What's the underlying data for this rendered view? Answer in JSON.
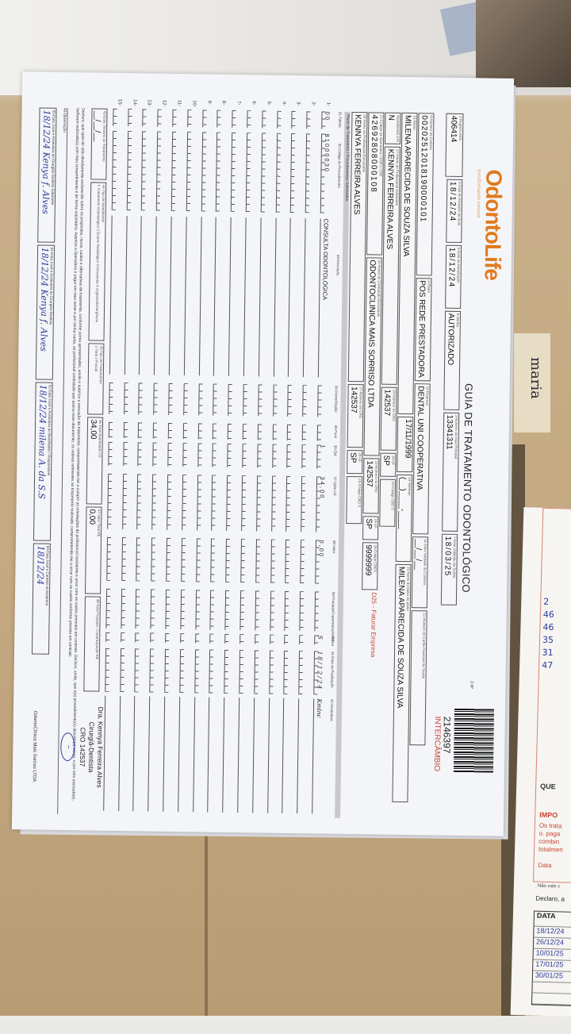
{
  "background": {
    "note_label": "maria"
  },
  "header": {
    "logo": "OdontoLife",
    "logo_tagline": "transformando sorrisos",
    "title": "GUIA DE TRATAMENTO ODONTOLÓGICO",
    "guide_number": "2146397",
    "guide_type": "INTERCÂMBIO",
    "page": "2-Nº"
  },
  "fields": {
    "registro_ans": {
      "label": "1-Registro ANS",
      "value": "406414"
    },
    "data_emissao": {
      "label": "4-Data de Emissão da Guia",
      "value": "18/12/24"
    },
    "data_autorizacao": {
      "label": "5-Data da Autorização",
      "value": "18/12/24"
    },
    "senha": {
      "label": "6-Senha",
      "value": "AUTORIZADO"
    },
    "guia_principal": {
      "label": "3-Número da Guia Principal",
      "value": "13341311"
    },
    "validade_senha": {
      "label": "7-Data Validade da Senha",
      "value": "18/03/25"
    },
    "carteira": {
      "label": "8-Número da Carteira",
      "value": "00202512018190000101"
    },
    "plano": {
      "label": "9-Plano",
      "value": "POS REDE PRESTADORA"
    },
    "empresa": {
      "label": "10-Empresa",
      "value": "DENTAL UNI COOPERATIVA"
    },
    "validade_carteira": {
      "label": "11-Data Validade da Carteira",
      "value": "__/__/__"
    },
    "cns": {
      "label": "12-Número do Cartão Nacional de Saúde",
      "value": ""
    },
    "nome": {
      "label": "13-Nome",
      "value": "MILENA APARECIDA DE SOUZA SILVA"
    },
    "nascimento": {
      "label": "",
      "value": "17/11/1999"
    },
    "telefone": {
      "label": "14-Telefone",
      "value": "(__)____-____"
    },
    "titular": {
      "label": "15-Nome do titular do plano",
      "value": "MILENA APARECIDA DE SOUZA SILVA"
    },
    "rn": {
      "label": "Atendimento a RN",
      "value": "N"
    },
    "prof_solicitante": {
      "label": "17-Nome do Profissional Solicitante",
      "value": "KENNYA FERREIRA ALVES"
    },
    "cro_sol": {
      "label": "18-Número no CRO",
      "value": "142537"
    },
    "uf_sol": {
      "label": "19-UF",
      "value": "SP"
    },
    "cbo_sol": {
      "label": "20-Código CBO S",
      "value": ""
    },
    "cod_operadora": {
      "label": "21-Código na Operadora / CNPJ / CPF",
      "value": "42692808000108"
    },
    "contratado": {
      "label": "22-Nome do Contratado Executante",
      "value": "ODONTOCLINICA MAIS SORRISO LTDA"
    },
    "cro_cont": {
      "label": "23-Número no CRO",
      "value": "142537"
    },
    "uf_cont": {
      "label": "24-UF",
      "value": "SP"
    },
    "cnes": {
      "label": "25-Código CNES",
      "value": "9999999"
    },
    "faturar": "D25 - Faturar Empresa",
    "prof_executante": {
      "label": "26-Nome do Profissional Executante",
      "value": "KENNYA FERREIRA ALVES"
    },
    "cro_exec": {
      "label": "27-Número no CRO",
      "value": "142537"
    },
    "uf_exec": {
      "label": "28-UF",
      "value": "SP"
    },
    "cbo_exec": {
      "label": "29-Código CBO S",
      "value": ""
    }
  },
  "plan_section": "Plano de Tratamento / Procedimentos Solicitados",
  "table_headers": [
    "31-Tabela",
    "32-Código do Procedimento",
    "33-Descrição",
    "34-Dente/Região",
    "35-Face",
    "36-Qtd",
    "37-Qtde US",
    "38-Valor",
    "39-Franquia/Coparticipação R$",
    "40-Aut",
    "41-Data de Realização",
    "42-Assinatura"
  ],
  "procedures": [
    {
      "num": "1-",
      "tabela": "00",
      "codigo": "81000030",
      "descricao": "CONSULTA ODONTOLÓGICA",
      "dente": "",
      "face": "",
      "qtd": "1",
      "qtde_us": "34,00",
      "valor": "0,00",
      "franquia": "",
      "aut": "S",
      "data": "18/12/24",
      "assinatura": "Kmlnc"
    },
    {
      "num": "2-"
    },
    {
      "num": "3-"
    },
    {
      "num": "4-"
    },
    {
      "num": "5-"
    },
    {
      "num": "6-"
    },
    {
      "num": "7-"
    },
    {
      "num": "8-"
    },
    {
      "num": "9-"
    },
    {
      "num": "10-"
    },
    {
      "num": "11-"
    },
    {
      "num": "12-"
    },
    {
      "num": "13-"
    },
    {
      "num": "14-"
    },
    {
      "num": "15-"
    }
  ],
  "totals": {
    "data_termino": {
      "label": "43-Data Término do Tratamento",
      "value": "__/__/__"
    },
    "tipo_atendimento": {
      "label": "44-Tipo de Atendimento",
      "value": "1-Tratamento Odontológico 2-Exame Radiológico 3-Ortodontia 4-Urgência/Emergência"
    },
    "tipo_faturamento": {
      "label": "45-Tipo de Faturamento",
      "value": "1-Total 2-Parcial"
    },
    "total_us": {
      "label": "46-Total Quantidade US",
      "value": "34,00"
    },
    "valor_total": {
      "label": "47-Valor Total R$",
      "value": "0,00"
    },
    "total_franquia": {
      "label": "48-Total Franquia / Coparticipação R$",
      "value": ""
    }
  },
  "declaration": "Declaro, que após ter sido devidamente esclarecido sobre os propósitos, riscos, custos e alternativas de tratamento, conforme acima apresentados, aceito e autorizo a execução do tratamento, comprometendo-me a cumprir as orientações do profissional assistente e arcar com os custos previstos em contrato. Declaro, ainda, que o(s) procedimento(s) descrito(s) acima, e por mim assinado(s), foi/foram realizado(s) com meu consentimento e de forma satisfatória. Autorizo a Operadora a pagar em meu nome e por minha conta, ao profissional contratado que assina esse documento, os valores referentes ao tratamento realizado, comprometendo-me a arcar com os custos conforme previsto em contrato.",
  "observation_label": "49-Observação",
  "signatures": [
    {
      "label": "50-Data, local e Assinatura do Cirurgião-Dentista Solicitante",
      "value": "18/12/24 Kenya f. Alves"
    },
    {
      "label": "51-Data, local e Assinatura do Cirurgião-Dentista",
      "value": "18/12/24 Kenya f. Alves"
    },
    {
      "label": "52-Data, local e Assinatura do Beneficiário / Responsável",
      "value": "18/12/24 milena A. da S.S"
    },
    {
      "label": "53-Data, local e Carimbo da Empresa",
      "value": "18/12/24"
    }
  ],
  "stamp": {
    "name": "Dra. Kennya Ferreira Alves",
    "role": "Cirurgiã-Dentista",
    "cro": "CRO 142537",
    "clinic": "OdontoClínica Mais Sorriso LTDA"
  },
  "side_slip": {
    "handwritten_rows": [
      "2",
      "46",
      "46",
      "35",
      "31",
      "47"
    ],
    "que": "QUE",
    "impo": "IMPO",
    "red_lines": [
      "Os trata",
      "o. paga",
      "combin",
      "totalmen"
    ],
    "data_label": "Data",
    "nao_vale": "Não vale c",
    "declaro": "Declaro, a",
    "data_header": "DATA",
    "dates": [
      "18/12/24",
      "26/12/24",
      "10/01/25",
      "17/01/25",
      "30/01/25"
    ]
  },
  "colors": {
    "brand": "#e07a1f",
    "intercambio": "#c8453a",
    "ink": "#2c3a9c",
    "paper": "#f4f5f8",
    "cardboard": "#c4a982"
  }
}
